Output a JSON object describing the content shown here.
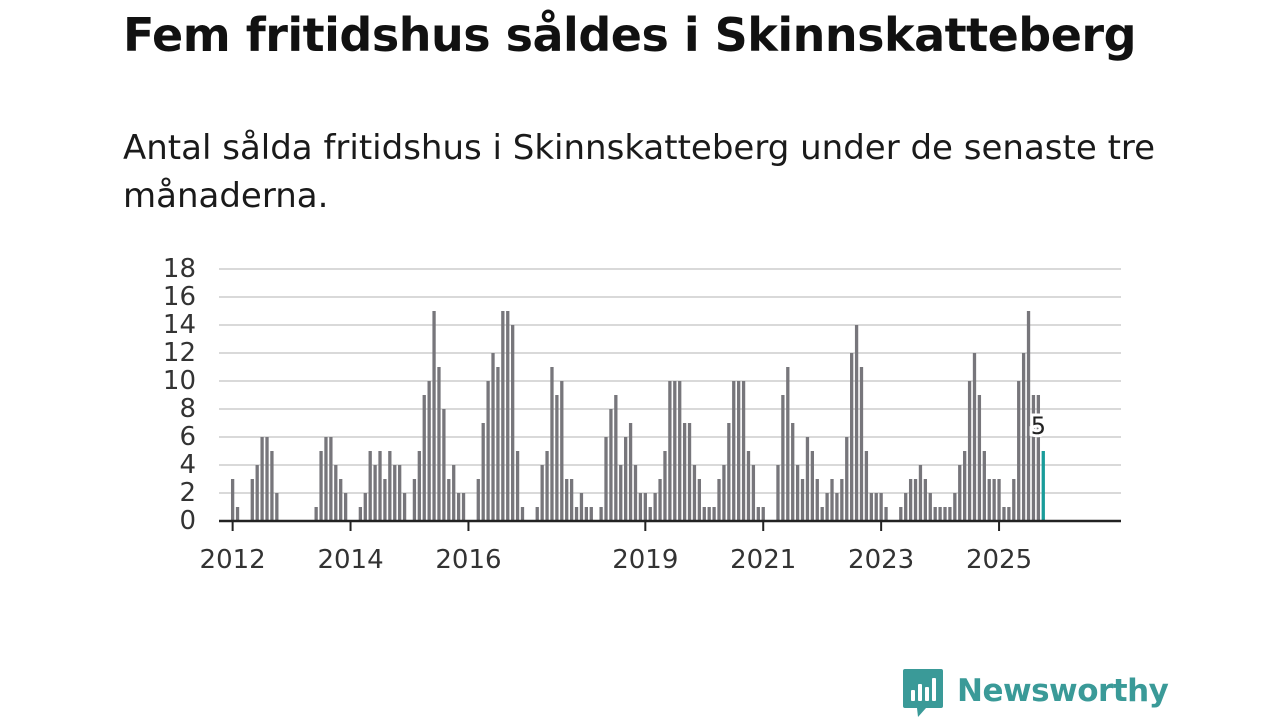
{
  "title": "Fem fritidshus såldes i Skinnskatteberg",
  "subtitle": "Antal sålda fritidshus i Skinnskatteberg under de senaste tre månaderna.",
  "brand": {
    "name": "Newsworthy",
    "logo_icon": "newsworthy-chart-icon"
  },
  "colors": {
    "bar": "#77767b",
    "highlight": "#199c9a",
    "grid": "#d9d9d9",
    "axis": "#222222",
    "brand": "#3a9a98"
  },
  "chart_data": {
    "type": "bar",
    "title": "Fem fritidshus såldes i Skinnskatteberg",
    "xlabel": "",
    "ylabel": "",
    "ylim": [
      0,
      18
    ],
    "yticks": [
      0,
      2,
      4,
      6,
      8,
      10,
      12,
      14,
      16,
      18
    ],
    "grid": true,
    "x_start": "2011-11",
    "x_end": "2025-09",
    "xtick_labels": [
      {
        "label": "2012",
        "month": "2012-01"
      },
      {
        "label": "2014",
        "month": "2014-01"
      },
      {
        "label": "2016",
        "month": "2016-01"
      },
      {
        "label": "2019",
        "month": "2019-01"
      },
      {
        "label": "2021",
        "month": "2021-01"
      },
      {
        "label": "2023",
        "month": "2023-01"
      },
      {
        "label": "2025",
        "month": "2025-01"
      }
    ],
    "series": [
      {
        "name": "Antal sålda fritidshus (rullande tre månader)",
        "values": [
          0,
          0,
          3,
          1,
          0,
          0,
          3,
          4,
          6,
          6,
          5,
          2,
          0,
          0,
          0,
          0,
          0,
          0,
          0,
          1,
          5,
          6,
          6,
          4,
          3,
          2,
          0,
          0,
          1,
          2,
          5,
          4,
          5,
          3,
          5,
          4,
          4,
          2,
          0,
          3,
          5,
          9,
          10,
          15,
          11,
          8,
          3,
          4,
          2,
          2,
          0,
          0,
          3,
          7,
          10,
          12,
          11,
          15,
          15,
          14,
          5,
          1,
          0,
          0,
          1,
          4,
          5,
          11,
          9,
          10,
          3,
          3,
          1,
          2,
          1,
          1,
          0,
          1,
          6,
          8,
          9,
          4,
          6,
          7,
          4,
          2,
          2,
          1,
          2,
          3,
          5,
          10,
          10,
          10,
          7,
          7,
          4,
          3,
          1,
          1,
          1,
          3,
          4,
          7,
          10,
          10,
          10,
          5,
          4,
          1,
          1,
          0,
          0,
          4,
          9,
          11,
          7,
          4,
          3,
          6,
          5,
          3,
          1,
          2,
          3,
          2,
          3,
          6,
          12,
          14,
          11,
          5,
          2,
          2,
          2,
          1,
          0,
          0,
          1,
          2,
          3,
          3,
          4,
          3,
          2,
          1,
          1,
          1,
          1,
          2,
          4,
          5,
          10,
          12,
          9,
          5,
          3,
          3,
          3,
          1,
          1,
          3,
          10,
          12,
          15,
          9,
          9,
          5
        ]
      }
    ],
    "annotations": [
      {
        "label": "5",
        "month": "2025-09",
        "value": 5
      }
    ]
  }
}
